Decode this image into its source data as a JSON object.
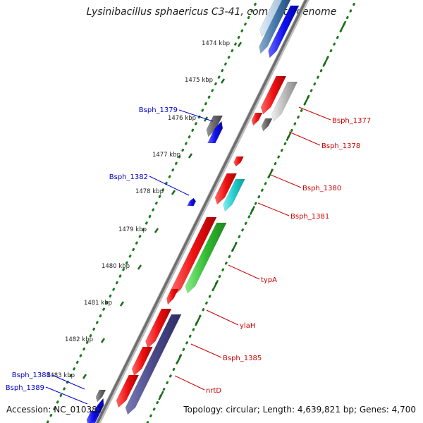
{
  "title": "Lysinibacillus sphaericus C3-41, complete genome",
  "accession": "Accession: NC_010382",
  "summary": "Topology: circular; Length: 4,639,821 bp; Genes: 4,700",
  "ticks": [
    "1474 kbp",
    "1475 kbp",
    "1476 kbp",
    "1477 kbp",
    "1478 kbp",
    "1479 kbp",
    "1480 kbp",
    "1481 kbp",
    "1482 kbp",
    "1483 kbp"
  ],
  "forward_labels": [
    "Bsph_1379",
    "Bsph_1382",
    "Bsph_1388",
    "Bsph_1389"
  ],
  "reverse_labels": [
    "Bsph_1377",
    "Bsph_1378",
    "Bsph_1380",
    "Bsph_1381",
    "typA",
    "ylaH",
    "Bsph_1385",
    "nrtD"
  ],
  "colors": {
    "forward_label": "#0000cc",
    "reverse_label": "#cc0000",
    "backbone": "#777777",
    "dots": "#1a7a1a",
    "red": "#ee1111",
    "blue": "#1111ee",
    "gray": "#666666",
    "lightgray": "#bbbbbb",
    "cyan": "#22cccc",
    "green": "#33bb33",
    "navy": "#4a4a8a",
    "steel": "#4477aa"
  }
}
